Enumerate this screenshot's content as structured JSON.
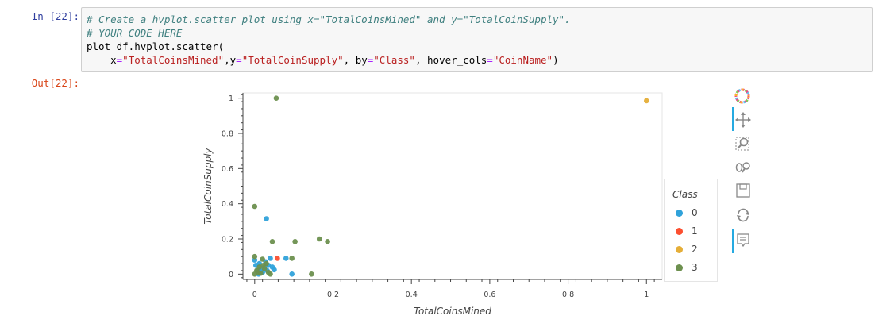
{
  "cell": {
    "in_prompt": "In [22]:",
    "out_prompt": "Out[22]:",
    "code_lines": [
      [
        {
          "t": "# Create a hvplot.scatter plot using x=\"TotalCoinsMined\" and y=\"TotalCoinSupply\".",
          "c": "comment"
        }
      ],
      [
        {
          "t": "# YOUR CODE HERE",
          "c": "comment"
        }
      ],
      [
        {
          "t": "plot_df.hvplot.scatter(",
          "c": "var"
        }
      ],
      [
        {
          "t": "    x",
          "c": "var"
        },
        {
          "t": "=",
          "c": "op"
        },
        {
          "t": "\"TotalCoinsMined\"",
          "c": "string"
        },
        {
          "t": ",y",
          "c": "var"
        },
        {
          "t": "=",
          "c": "op"
        },
        {
          "t": "\"TotalCoinSupply\"",
          "c": "string"
        },
        {
          "t": ", by",
          "c": "var"
        },
        {
          "t": "=",
          "c": "op"
        },
        {
          "t": "\"Class\"",
          "c": "string"
        },
        {
          "t": ", hover_cols",
          "c": "var"
        },
        {
          "t": "=",
          "c": "op"
        },
        {
          "t": "\"CoinName\"",
          "c": "string"
        },
        {
          "t": ")",
          "c": "var"
        }
      ]
    ]
  },
  "chart_data": {
    "type": "scatter",
    "xlabel": "TotalCoinsMined",
    "ylabel": "TotalCoinSupply",
    "xlim": [
      -0.03,
      1.04
    ],
    "ylim": [
      -0.03,
      1.03
    ],
    "x_ticks": [
      0,
      0.2,
      0.4,
      0.6,
      0.8,
      1
    ],
    "y_ticks": [
      0,
      0.2,
      0.4,
      0.6,
      0.8,
      1
    ],
    "grid": false,
    "legend": {
      "title": "Class",
      "placement": "right"
    },
    "series": [
      {
        "name": "0",
        "color": "#30a2da",
        "points": [
          [
            0.0,
            0.08
          ],
          [
            0.003,
            0.05
          ],
          [
            0.006,
            0.02
          ],
          [
            0.01,
            0.0
          ],
          [
            0.012,
            0.06
          ],
          [
            0.015,
            0.03
          ],
          [
            0.02,
            0.01
          ],
          [
            0.025,
            0.04
          ],
          [
            0.03,
            0.315
          ],
          [
            0.032,
            0.02
          ],
          [
            0.035,
            0.05
          ],
          [
            0.04,
            0.09
          ],
          [
            0.045,
            0.04
          ],
          [
            0.05,
            0.025
          ],
          [
            0.08,
            0.09
          ],
          [
            0.095,
            0.0
          ],
          [
            0.028,
            0.07
          ],
          [
            0.018,
            0.015
          ]
        ]
      },
      {
        "name": "1",
        "color": "#fc4f30",
        "points": [
          [
            0.058,
            0.09
          ]
        ]
      },
      {
        "name": "2",
        "color": "#e5ae38",
        "points": [
          [
            1.0,
            0.985
          ]
        ]
      },
      {
        "name": "3",
        "color": "#6d904f",
        "points": [
          [
            0.055,
            1.0
          ],
          [
            0.0,
            0.385
          ],
          [
            0.045,
            0.185
          ],
          [
            0.103,
            0.185
          ],
          [
            0.165,
            0.2
          ],
          [
            0.186,
            0.185
          ],
          [
            0.145,
            0.0
          ],
          [
            0.095,
            0.09
          ],
          [
            0.0,
            0.1
          ],
          [
            0.0,
            0.0
          ],
          [
            0.008,
            0.01
          ],
          [
            0.015,
            0.005
          ],
          [
            0.02,
            0.085
          ],
          [
            0.025,
            0.03
          ],
          [
            0.03,
            0.06
          ],
          [
            0.035,
            0.01
          ],
          [
            0.04,
            0.0
          ],
          [
            0.012,
            0.04
          ],
          [
            0.005,
            0.02
          ],
          [
            0.022,
            0.05
          ]
        ]
      }
    ]
  },
  "toolbar": {
    "tools": [
      "bokeh-logo-icon",
      "pan-icon",
      "box-zoom-icon",
      "wheel-zoom-icon",
      "save-icon",
      "reset-icon",
      "hover-icon"
    ]
  }
}
